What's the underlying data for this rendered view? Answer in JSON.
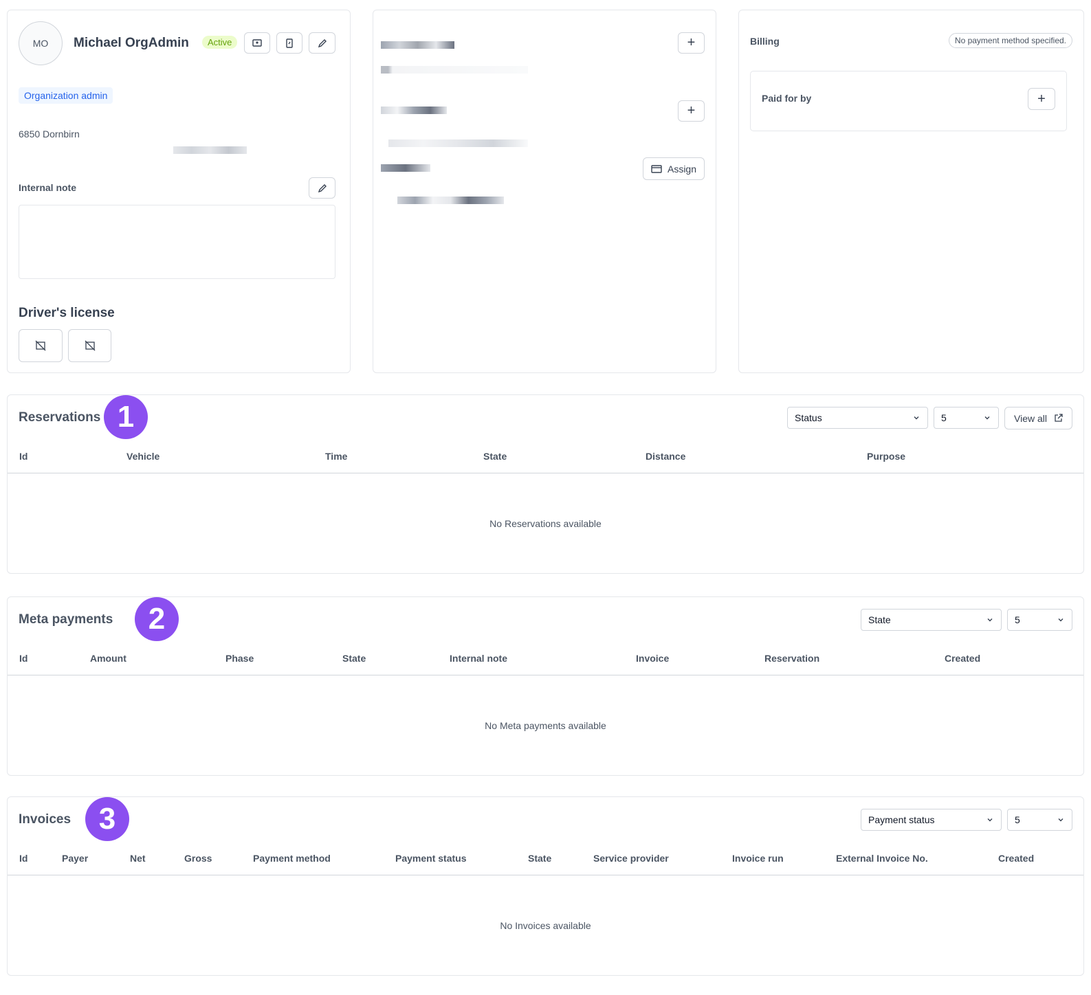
{
  "profile": {
    "initials": "MO",
    "name": "Michael OrgAdmin",
    "status": "Active",
    "role": "Organization admin",
    "address": "6850 Dornbirn",
    "internal_note_label": "Internal note",
    "license_title": "Driver's license"
  },
  "contact": {
    "assign_button": "Assign"
  },
  "billing": {
    "title": "Billing",
    "payment_method": "No payment method specified.",
    "paid_for_by": "Paid for by"
  },
  "sections": [
    {
      "title": "Reservations",
      "badge": "1",
      "filters": [
        "Status",
        "5"
      ],
      "view_all": "View all",
      "columns": [
        "Id",
        "Vehicle",
        "Time",
        "State",
        "Distance",
        "Purpose"
      ],
      "empty": "No Reservations available"
    },
    {
      "title": "Meta payments",
      "badge": "2",
      "filters": [
        "State",
        "5"
      ],
      "columns": [
        "Id",
        "Amount",
        "Phase",
        "State",
        "Internal note",
        "Invoice",
        "Reservation",
        "Created"
      ],
      "empty": "No Meta payments available"
    },
    {
      "title": "Invoices",
      "badge": "3",
      "filters": [
        "Payment status",
        "5"
      ],
      "columns": [
        "Id",
        "Payer",
        "Net",
        "Gross",
        "Payment method",
        "Payment status",
        "State",
        "Service provider",
        "Invoice run",
        "External Invoice No.",
        "Created"
      ],
      "empty": "No Invoices available"
    }
  ]
}
